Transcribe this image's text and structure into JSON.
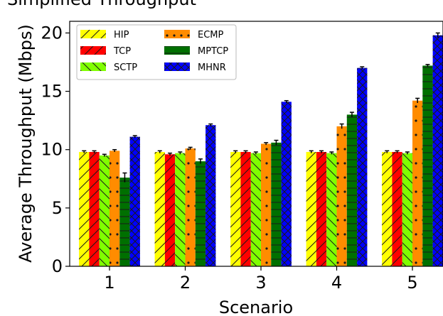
{
  "chart_data": {
    "type": "bar",
    "title": "Simplified Throughput",
    "xlabel": "Scenario",
    "ylabel": "Average Throughput (Mbps)",
    "categories": [
      "1",
      "2",
      "3",
      "4",
      "5"
    ],
    "ylim": [
      0,
      21
    ],
    "yticks": [
      0,
      5,
      10,
      15,
      20
    ],
    "grid": false,
    "legend_position": "top-left",
    "series": [
      {
        "name": "HIP",
        "color": "#ffff00",
        "hatch": "slash",
        "values": [
          9.8,
          9.8,
          9.8,
          9.8,
          9.8
        ],
        "errors": [
          0.1,
          0.1,
          0.1,
          0.1,
          0.1
        ]
      },
      {
        "name": "TCP",
        "color": "#ff0000",
        "hatch": "slash",
        "values": [
          9.8,
          9.6,
          9.8,
          9.8,
          9.8
        ],
        "errors": [
          0.1,
          0.1,
          0.1,
          0.1,
          0.1
        ]
      },
      {
        "name": "SCTP",
        "color": "#80ff00",
        "hatch": "backslash",
        "values": [
          9.5,
          9.7,
          9.7,
          9.7,
          9.7
        ],
        "errors": [
          0.1,
          0.1,
          0.1,
          0.1,
          0.1
        ]
      },
      {
        "name": "ECMP",
        "color": "#ff8c00",
        "hatch": "dot",
        "values": [
          9.9,
          10.1,
          10.5,
          12.0,
          14.2
        ],
        "errors": [
          0.1,
          0.1,
          0.1,
          0.2,
          0.2
        ]
      },
      {
        "name": "MPTCP",
        "color": "#007000",
        "hatch": "dash",
        "values": [
          7.6,
          9.0,
          10.6,
          13.0,
          17.2
        ],
        "errors": [
          0.4,
          0.2,
          0.2,
          0.2,
          0.1
        ]
      },
      {
        "name": "MHNR",
        "color": "#0000ff",
        "hatch": "cross",
        "values": [
          11.1,
          12.1,
          14.1,
          17.0,
          19.8
        ],
        "errors": [
          0.1,
          0.1,
          0.1,
          0.1,
          0.2
        ]
      }
    ]
  }
}
